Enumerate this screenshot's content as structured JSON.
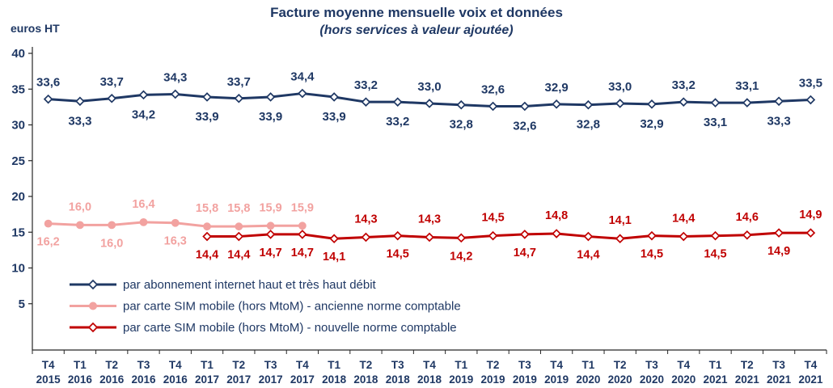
{
  "chart_data": {
    "type": "line",
    "title": "Facture moyenne mensuelle voix et données",
    "subtitle": "(hors services à valeur ajoutée)",
    "ylabel": "euros HT",
    "ylim": [
      0,
      40
    ],
    "ytick_step": 5,
    "grid": false,
    "legend_position": "inside-bottom-left",
    "decimal_separator": ",",
    "colors": {
      "text": "#1F3864",
      "axis": "#262626",
      "background": "#FFFFFF"
    },
    "categories": [
      [
        "T4",
        "2015"
      ],
      [
        "T1",
        "2016"
      ],
      [
        "T2",
        "2016"
      ],
      [
        "T3",
        "2016"
      ],
      [
        "T4",
        "2016"
      ],
      [
        "T1",
        "2017"
      ],
      [
        "T2",
        "2017"
      ],
      [
        "T3",
        "2017"
      ],
      [
        "T4",
        "2017"
      ],
      [
        "T1",
        "2018"
      ],
      [
        "T2",
        "2018"
      ],
      [
        "T3",
        "2018"
      ],
      [
        "T4",
        "2018"
      ],
      [
        "T1",
        "2019"
      ],
      [
        "T2",
        "2019"
      ],
      [
        "T3",
        "2019"
      ],
      [
        "T4",
        "2019"
      ],
      [
        "T1",
        "2020"
      ],
      [
        "T2",
        "2020"
      ],
      [
        "T3",
        "2020"
      ],
      [
        "T4",
        "2020"
      ],
      [
        "T1",
        "2021"
      ],
      [
        "T2",
        "2021"
      ],
      [
        "T3",
        "2021"
      ],
      [
        "T4",
        "2021"
      ]
    ],
    "series": [
      {
        "name": "par abonnement internet haut et très haut débit",
        "color": "#1F3864",
        "marker": "diamond",
        "start_index": 0,
        "values": [
          33.6,
          33.3,
          33.7,
          34.2,
          34.3,
          33.9,
          33.7,
          33.9,
          34.4,
          33.9,
          33.2,
          33.2,
          33.0,
          32.8,
          32.6,
          32.6,
          32.9,
          32.8,
          33.0,
          32.9,
          33.2,
          33.1,
          33.1,
          33.3,
          33.5
        ],
        "label_positions": [
          "above",
          "below",
          "above",
          "below",
          "above",
          "below",
          "above",
          "below",
          "above",
          "below",
          "above",
          "below",
          "above",
          "below",
          "above",
          "below",
          "above",
          "below",
          "above",
          "below",
          "above",
          "below",
          "above",
          "below",
          "above"
        ]
      },
      {
        "name": "par carte SIM mobile (hors MtoM)  - ancienne norme comptable",
        "color": "#F2A2A0",
        "marker": "circle",
        "start_index": 0,
        "values": [
          16.2,
          16.0,
          16.0,
          16.4,
          16.3,
          15.8,
          15.8,
          15.9,
          15.9
        ],
        "label_positions": [
          "below",
          "above",
          "below",
          "above",
          "below",
          "above",
          "above",
          "above",
          "above"
        ]
      },
      {
        "name": "par carte SIM mobile (hors MtoM)  - nouvelle norme comptable",
        "color": "#C00000",
        "marker": "diamond",
        "start_index": 5,
        "values": [
          14.4,
          14.4,
          14.7,
          14.7,
          14.1,
          14.3,
          14.5,
          14.3,
          14.2,
          14.5,
          14.7,
          14.8,
          14.4,
          14.1,
          14.5,
          14.4,
          14.5,
          14.6,
          14.9,
          14.9
        ],
        "label_positions": [
          "below",
          "below",
          "below",
          "below",
          "below",
          "above",
          "below",
          "above",
          "below",
          "above",
          "below",
          "above",
          "below",
          "above",
          "below",
          "above",
          "below",
          "above",
          "below",
          "above"
        ]
      }
    ]
  }
}
